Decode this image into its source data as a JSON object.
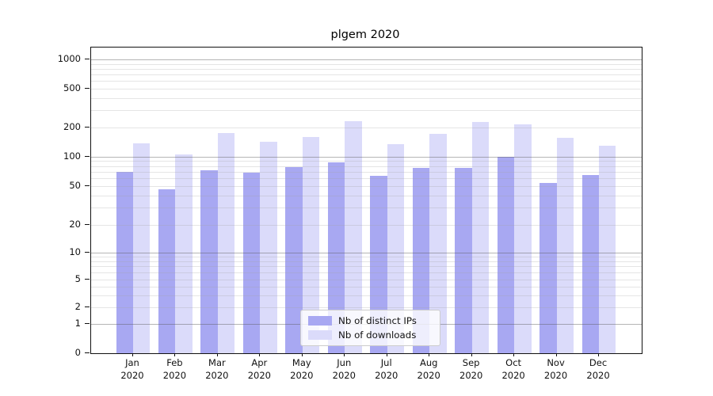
{
  "figure": {
    "title": "plgem 2020"
  },
  "legend": {
    "items": [
      {
        "label": "Nb of distinct IPs",
        "color": "#a8a8f2"
      },
      {
        "label": "Nb of downloads",
        "color": "#dbdbfa"
      }
    ]
  },
  "y_axis": {
    "tick_labels": [
      "0",
      "1",
      "2",
      "5",
      "10",
      "20",
      "50",
      "100",
      "200",
      "500",
      "1000"
    ]
  },
  "x_axis": {
    "months": [
      "Jan",
      "Feb",
      "Mar",
      "Apr",
      "May",
      "Jun",
      "Jul",
      "Aug",
      "Sep",
      "Oct",
      "Nov",
      "Dec"
    ],
    "year": "2020"
  },
  "chart_data": {
    "type": "bar",
    "title": "plgem 2020",
    "categories": [
      "Jan 2020",
      "Feb 2020",
      "Mar 2020",
      "Apr 2020",
      "May 2020",
      "Jun 2020",
      "Jul 2020",
      "Aug 2020",
      "Sep 2020",
      "Oct 2020",
      "Nov 2020",
      "Dec 2020"
    ],
    "series": [
      {
        "name": "Nb of distinct IPs",
        "color": "#a8a8f2",
        "values": [
          70,
          46,
          73,
          68,
          78,
          88,
          64,
          77,
          76,
          100,
          54,
          65
        ]
      },
      {
        "name": "Nb of downloads",
        "color": "#dbdbfa",
        "values": [
          138,
          105,
          173,
          142,
          158,
          233,
          135,
          172,
          229,
          213,
          155,
          129
        ]
      }
    ],
    "xlabel": "",
    "ylabel": "",
    "yscale": "symlog-like (log above 1, compressed linear 0-1)",
    "y_ticks": [
      0,
      1,
      2,
      5,
      10,
      20,
      50,
      100,
      200,
      500,
      1000
    ],
    "ylim": [
      0,
      1350
    ],
    "grid": true,
    "major_grid_values": [
      1,
      10,
      100,
      1000
    ],
    "legend_position": "lower center"
  }
}
